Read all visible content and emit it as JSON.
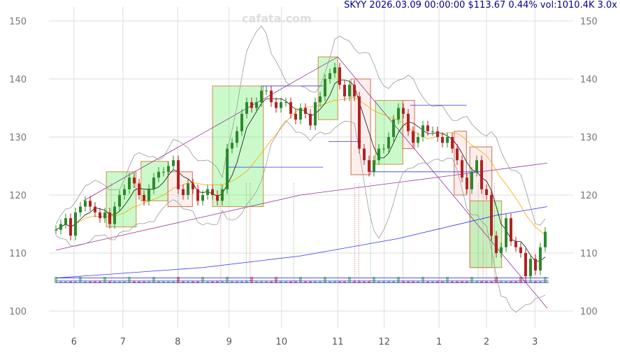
{
  "watermark": "cafata.com",
  "title": "SKYY 2026.03.09 00:00:00 $113.67 0.44% vol:1010.4K 3.0x",
  "chart_data": {
    "type": "candlestick",
    "ylim": [
      100,
      150
    ],
    "yticks": [
      100,
      110,
      120,
      130,
      140,
      150
    ],
    "xticks": [
      {
        "label": "6",
        "i": 3.7
      },
      {
        "label": "7",
        "i": 13.7
      },
      {
        "label": "8",
        "i": 24.9
      },
      {
        "label": "9",
        "i": 35.4
      },
      {
        "label": "10",
        "i": 46.1
      },
      {
        "label": "11",
        "i": 57.6
      },
      {
        "label": "12",
        "i": 67.1
      },
      {
        "label": "1",
        "i": 78.3
      },
      {
        "label": "2",
        "i": 88
      },
      {
        "label": "3",
        "i": 97.9
      }
    ],
    "grid": true,
    "close": [
      114,
      115,
      116,
      113,
      117,
      118,
      119,
      118,
      117,
      116,
      117,
      115,
      118,
      120,
      121,
      123,
      122,
      120,
      119,
      121,
      123,
      124,
      124,
      125,
      126,
      121,
      120,
      122,
      121,
      119,
      120,
      121,
      120,
      119,
      121,
      128,
      129,
      131,
      134,
      136,
      135,
      136,
      138,
      138,
      136,
      135,
      136,
      136,
      134,
      133,
      135,
      134,
      132,
      136,
      137,
      140,
      141,
      142,
      139,
      137,
      139,
      137,
      128,
      126,
      124,
      126,
      128,
      128,
      130,
      133,
      135,
      134,
      131,
      129,
      130,
      132,
      131,
      131,
      130,
      129,
      130,
      128,
      126,
      123,
      121,
      124,
      126,
      121,
      120,
      113,
      110,
      111,
      116,
      112,
      111,
      110,
      106,
      109,
      107,
      111,
      113.67
    ],
    "boxes": [
      {
        "i0": 10.3,
        "i1": 16.4,
        "lo": 114.5,
        "hi": 124,
        "kind": "up"
      },
      {
        "i0": 17.4,
        "i1": 22.9,
        "lo": 119,
        "hi": 125.8,
        "kind": "up"
      },
      {
        "i0": 22.9,
        "i1": 27.9,
        "lo": 118,
        "hi": 124,
        "kind": "down"
      },
      {
        "i0": 32,
        "i1": 42.4,
        "lo": 118,
        "hi": 138.8,
        "kind": "up"
      },
      {
        "i0": 53.6,
        "i1": 57.6,
        "lo": 133,
        "hi": 143.8,
        "kind": "up"
      },
      {
        "i0": 60.3,
        "i1": 64.3,
        "lo": 123.5,
        "hi": 140,
        "kind": "down"
      },
      {
        "i0": 65.3,
        "i1": 70.9,
        "lo": 125.3,
        "hi": 136.3,
        "kind": "up"
      },
      {
        "i0": 70.9,
        "i1": 73.3,
        "lo": 128,
        "hi": 136.3,
        "kind": "down"
      },
      {
        "i0": 81.4,
        "i1": 83.9,
        "lo": 120,
        "hi": 131,
        "kind": "down"
      },
      {
        "i0": 84.6,
        "i1": 89.1,
        "lo": 107.5,
        "hi": 128.3,
        "kind": "down"
      },
      {
        "i0": 84.6,
        "i1": 91.1,
        "lo": 107.5,
        "hi": 119,
        "kind": "up"
      }
    ],
    "trend_lines": [
      [
        [
          5.6,
          119
        ],
        [
          57.6,
          143.8
        ],
        [
          100.4,
          100.5
        ]
      ],
      [
        [
          0,
          110.5
        ],
        [
          50,
          120
        ],
        [
          100.4,
          125.5
        ]
      ]
    ],
    "long_ma": [
      [
        0,
        105.7
      ],
      [
        30,
        107.5
      ],
      [
        50,
        109.5
      ],
      [
        70,
        112.5
      ],
      [
        90,
        116.5
      ],
      [
        100.4,
        118
      ]
    ],
    "levels": [
      {
        "i0": 35,
        "i1": 54.6,
        "v": 124.8
      },
      {
        "i0": 42,
        "i1": 54.6,
        "v": 138.8
      },
      {
        "i0": 55.7,
        "i1": 62.4,
        "v": 129.2
      },
      {
        "i0": 64.3,
        "i1": 87.3,
        "v": 124
      },
      {
        "i0": 72.4,
        "i1": 83.9,
        "v": 135.5
      }
    ],
    "markers": [
      11.3,
      25,
      33.7,
      38.9,
      39.7,
      48.6,
      61.1,
      61.9,
      64.3,
      70.9,
      78.3,
      86.3,
      87.3,
      89.6
    ]
  }
}
